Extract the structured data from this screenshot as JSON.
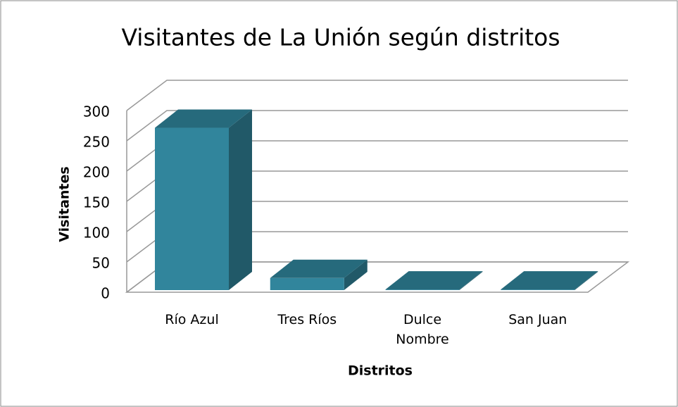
{
  "chart_data": {
    "type": "bar3d",
    "title": "Visitantes de La Unión según distritos",
    "x_label": "Distritos",
    "y_label": "Visitantes",
    "categories": [
      "Río Azul",
      "Tres Ríos",
      "Dulce Nombre",
      "San Juan"
    ],
    "values": [
      268,
      20,
      1,
      1
    ],
    "color": "#31859c",
    "ylim": [
      0,
      300
    ],
    "yticks": [
      0,
      50,
      100,
      150,
      200,
      250,
      300
    ],
    "grid": true
  }
}
